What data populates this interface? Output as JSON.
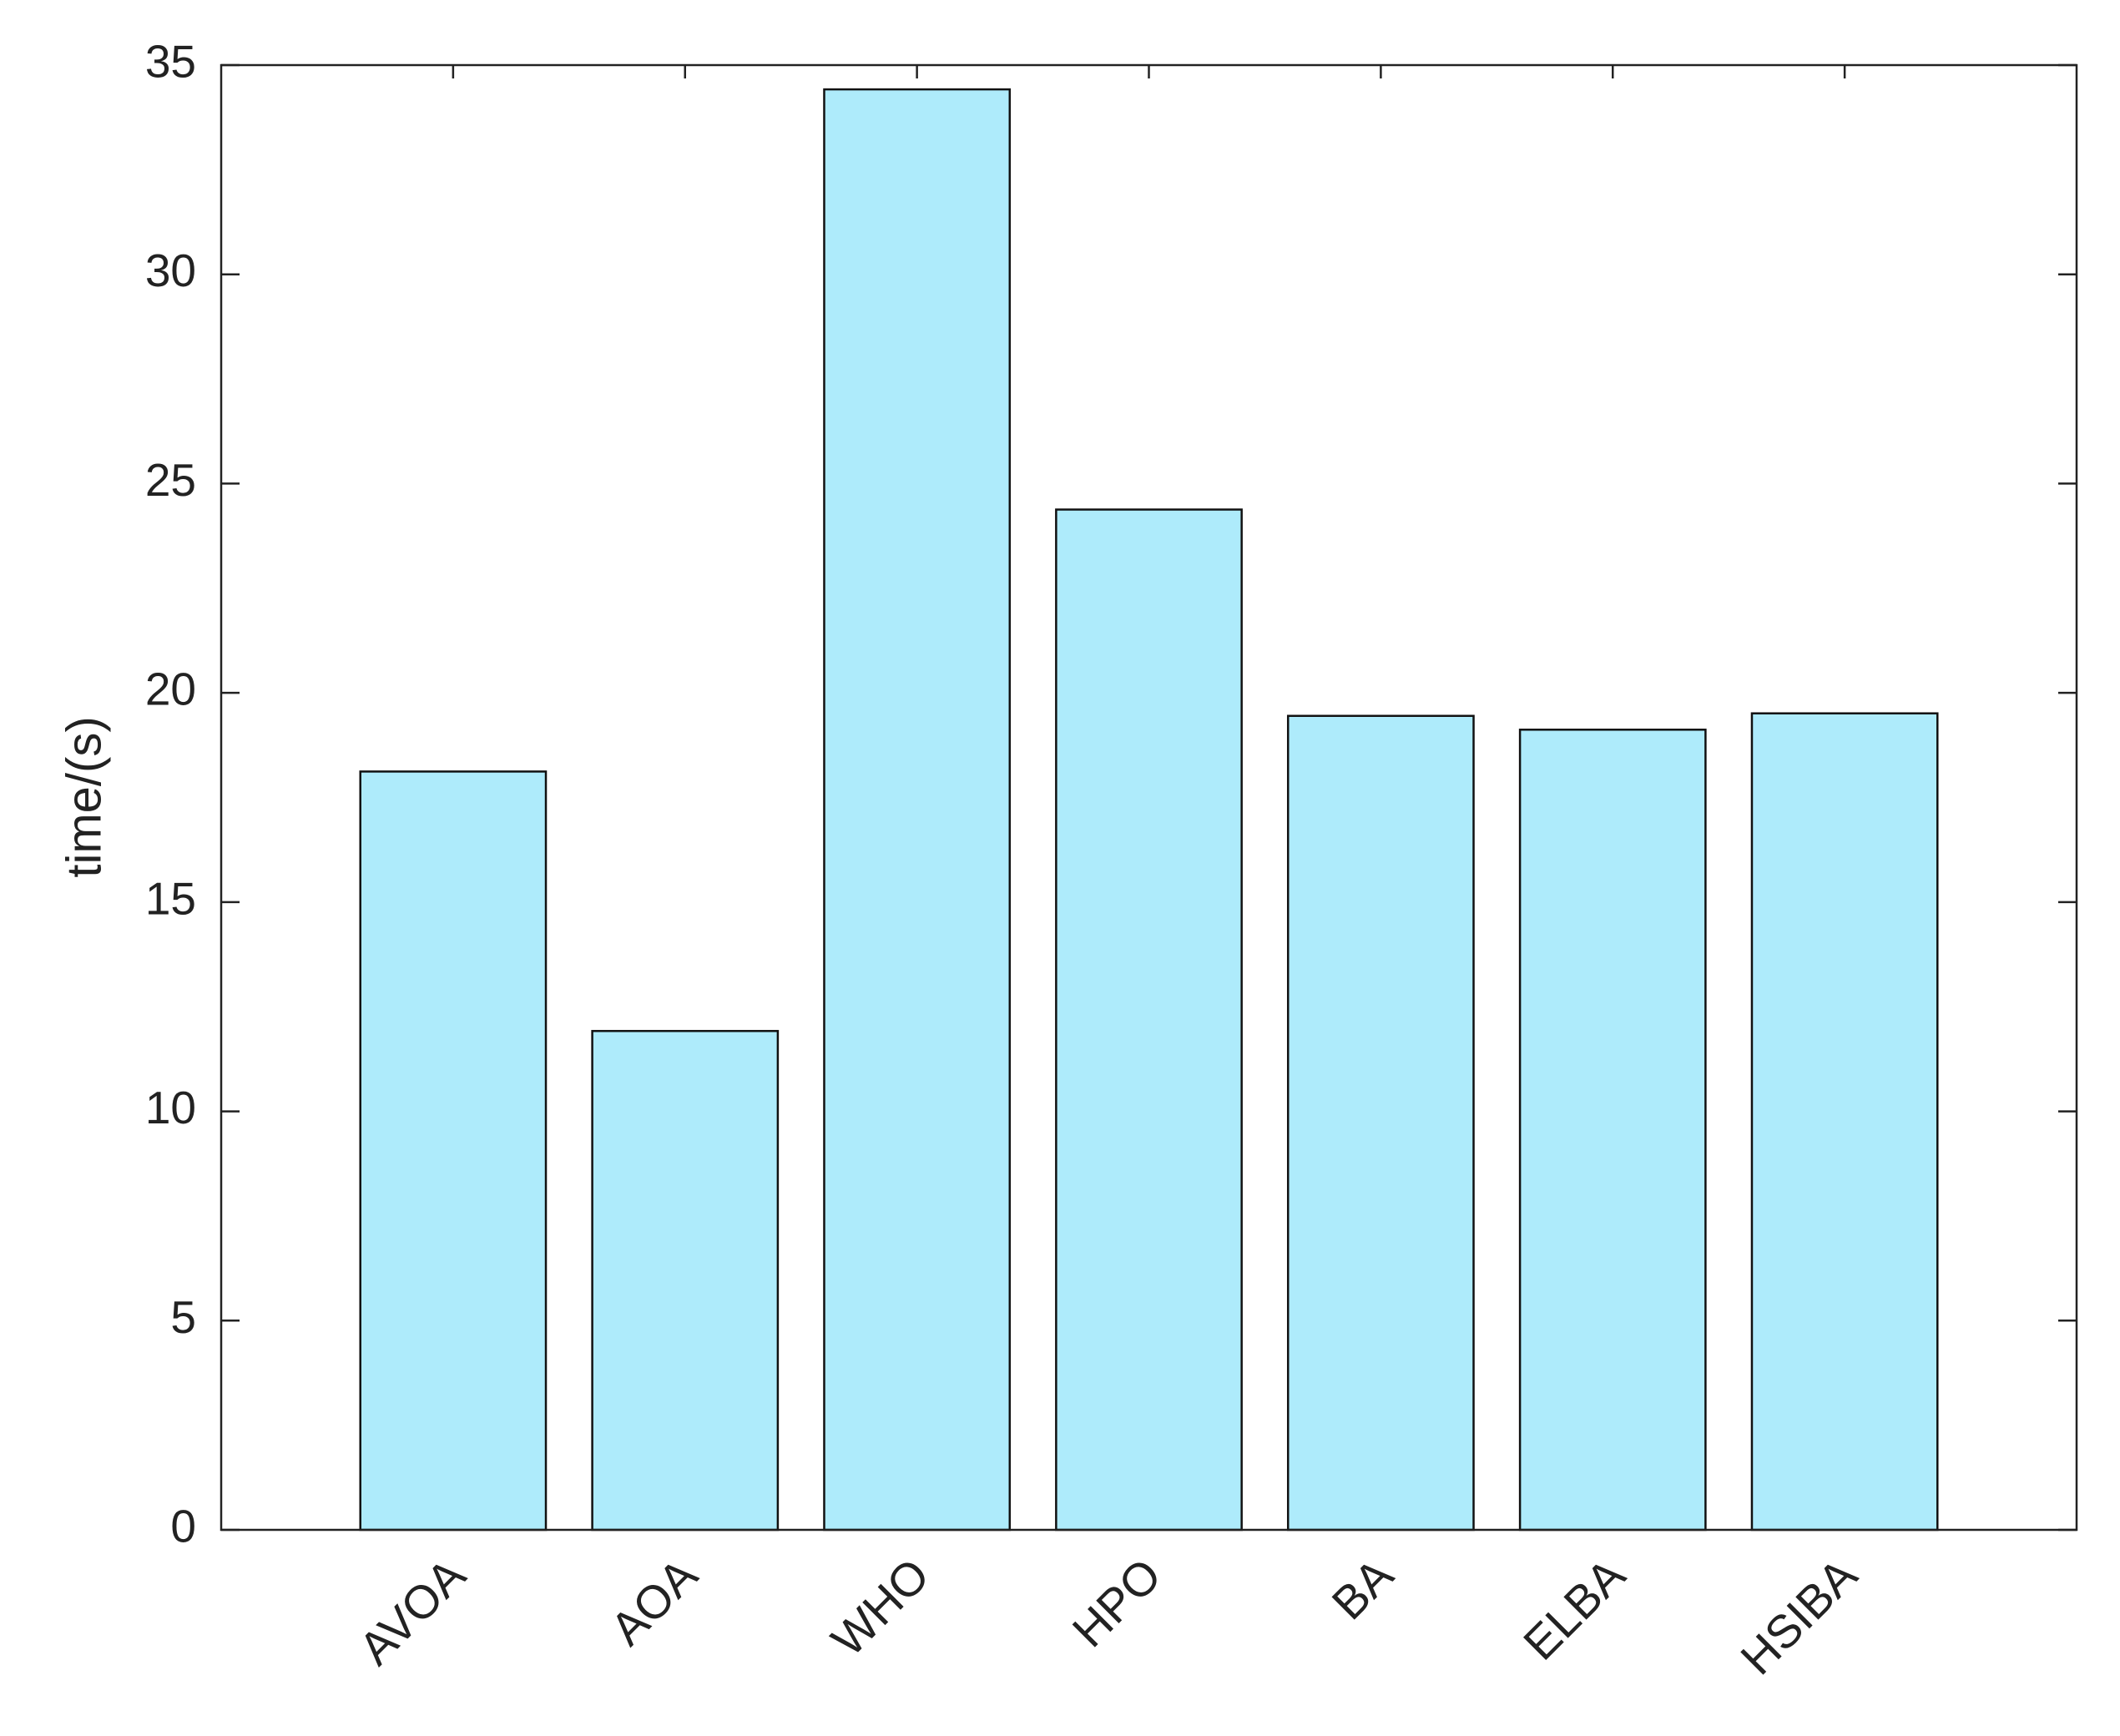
{
  "chart_data": {
    "type": "bar",
    "y_label": "time/(s)",
    "categories": [
      "AVOA",
      "AOA",
      "WHO",
      "HPO",
      "BA",
      "ELBA",
      "HSIBA"
    ],
    "values": [
      18.12,
      11.92,
      34.42,
      24.38,
      19.45,
      19.12,
      19.51
    ],
    "color": "#aeebfb",
    "ylim": [
      0,
      35
    ],
    "yticks": [
      0,
      5,
      10,
      15,
      20,
      25,
      30,
      35
    ],
    "grid": false
  }
}
